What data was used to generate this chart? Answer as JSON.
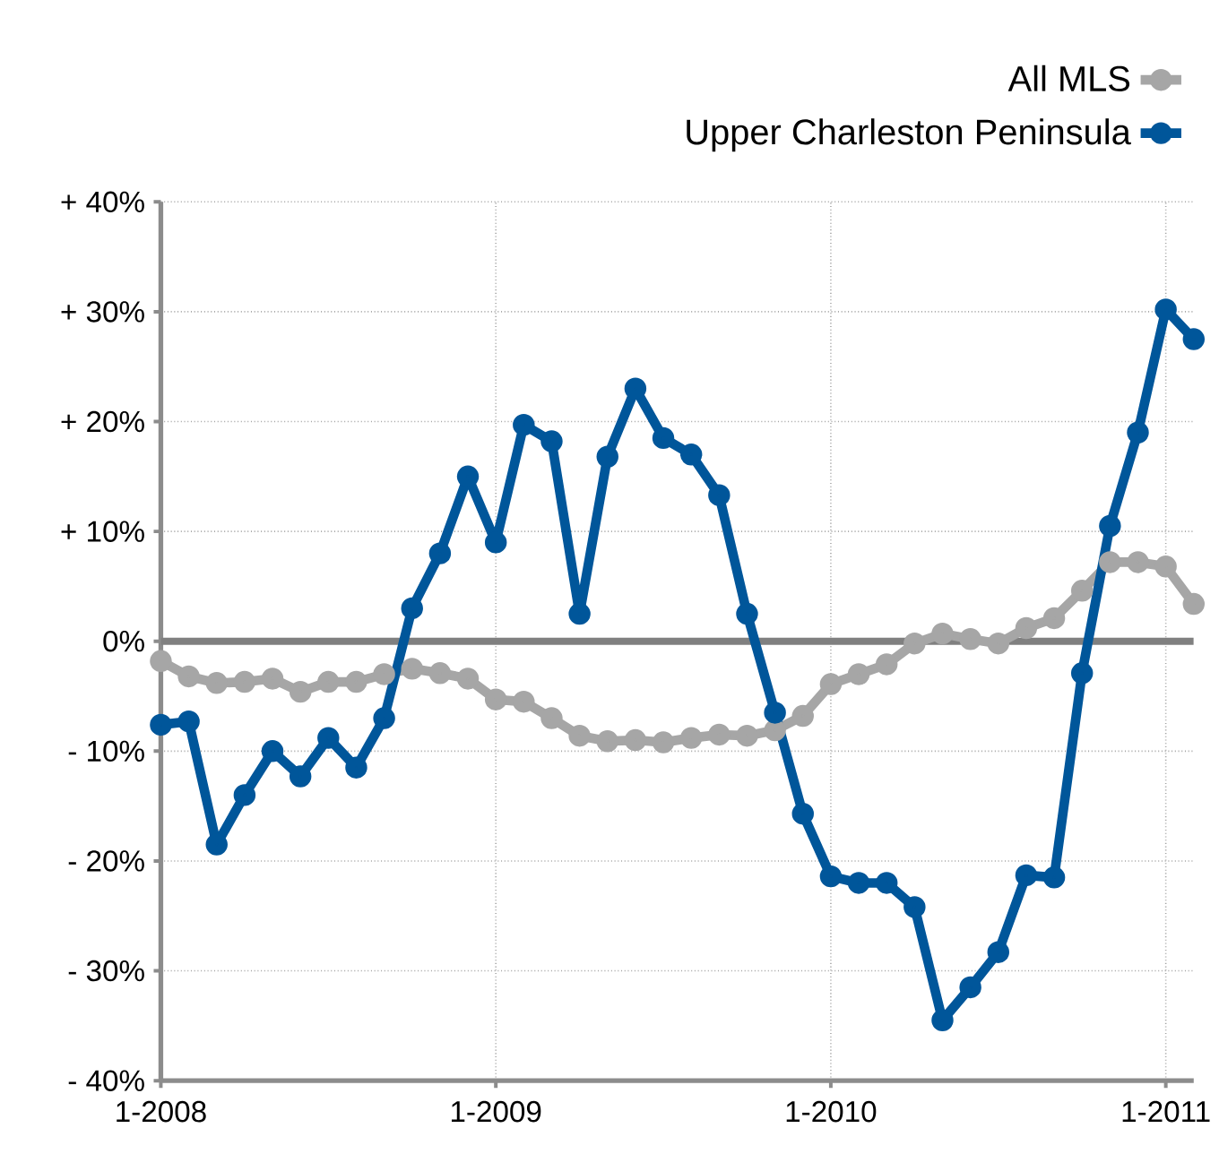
{
  "chart_data": {
    "type": "line",
    "x": [
      "2008-01",
      "2008-02",
      "2008-03",
      "2008-04",
      "2008-05",
      "2008-06",
      "2008-07",
      "2008-08",
      "2008-09",
      "2008-10",
      "2008-11",
      "2008-12",
      "2009-01",
      "2009-02",
      "2009-03",
      "2009-04",
      "2009-05",
      "2009-06",
      "2009-07",
      "2009-08",
      "2009-09",
      "2009-10",
      "2009-11",
      "2009-12",
      "2010-01",
      "2010-02",
      "2010-03",
      "2010-04",
      "2010-05",
      "2010-06",
      "2010-07",
      "2010-08",
      "2010-09",
      "2010-10",
      "2010-11",
      "2010-12",
      "2011-01",
      "2011-02"
    ],
    "series": [
      {
        "name": "All MLS",
        "color": "#a6a6a6",
        "values": [
          -1.8,
          -3.2,
          -3.8,
          -3.7,
          -3.4,
          -4.6,
          -3.7,
          -3.7,
          -3.0,
          -2.5,
          -2.9,
          -3.4,
          -5.3,
          -5.5,
          -7.0,
          -8.6,
          -9.1,
          -9.0,
          -9.2,
          -8.8,
          -8.5,
          -8.6,
          -8.1,
          -6.8,
          -3.9,
          -3.0,
          -2.1,
          -0.2,
          0.7,
          0.2,
          -0.2,
          1.2,
          2.1,
          4.6,
          7.2,
          7.2,
          6.8,
          3.4
        ]
      },
      {
        "name": "Upper Charleston Peninsula",
        "color": "#00569a",
        "values": [
          -7.6,
          -7.3,
          -18.5,
          -14.0,
          -10.0,
          -12.3,
          -8.8,
          -11.5,
          -7.0,
          3.0,
          8.0,
          15.0,
          9.0,
          19.7,
          18.2,
          2.5,
          16.8,
          23.0,
          18.5,
          17.0,
          13.3,
          2.5,
          -6.5,
          -15.7,
          -21.4,
          -22.0,
          -22.0,
          -24.2,
          -34.5,
          -31.5,
          -28.3,
          -21.3,
          -21.5,
          -2.9,
          10.5,
          19.0,
          30.2,
          27.5
        ]
      }
    ],
    "xlim": [
      "2008-01",
      "2011-02"
    ],
    "xticks": [
      {
        "value": "2008-01",
        "label": "1-2008"
      },
      {
        "value": "2009-01",
        "label": "1-2009"
      },
      {
        "value": "2010-01",
        "label": "1-2010"
      },
      {
        "value": "2011-01",
        "label": "1-2011"
      }
    ],
    "ylim": [
      -40,
      40
    ],
    "yticks": [
      {
        "value": -40,
        "label": "- 40%"
      },
      {
        "value": -30,
        "label": "- 30%"
      },
      {
        "value": -20,
        "label": "- 20%"
      },
      {
        "value": -10,
        "label": "- 10%"
      },
      {
        "value": 0,
        "label": "0%"
      },
      {
        "value": 10,
        "label": "+ 10%"
      },
      {
        "value": 20,
        "label": "+ 20%"
      },
      {
        "value": 30,
        "label": "+ 30%"
      },
      {
        "value": 40,
        "label": "+ 40%"
      }
    ],
    "ref_lines": [
      {
        "axis": "y",
        "value": 0,
        "color": "#808080"
      }
    ],
    "grid": true,
    "legend": "top right",
    "marker": "circle",
    "line_style": "solid"
  }
}
